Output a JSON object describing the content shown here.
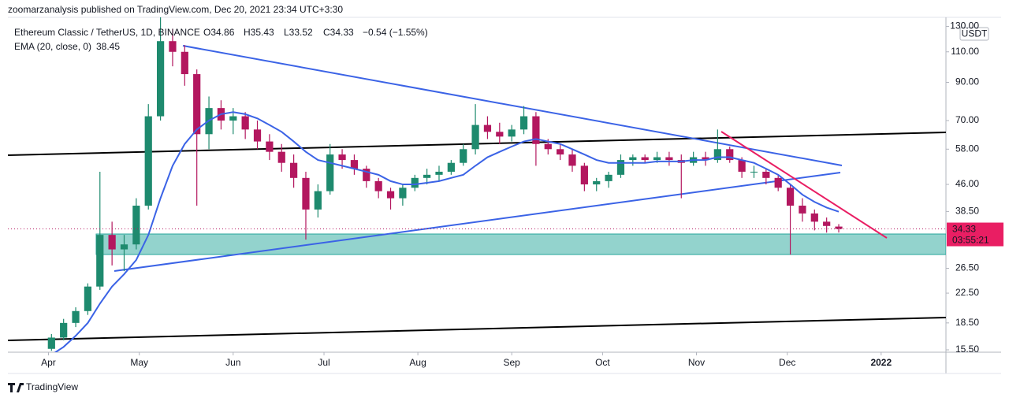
{
  "header": {
    "published": "zoomarzanalysis published on TradingView.com, Dec 20, 2021 23:34 UTC+3:30",
    "symbol": "Ethereum Classic / TetherUS, 1D, BINANCE",
    "ohlc": [
      "O34.86",
      "H35.43",
      "L33.52",
      "C34.33",
      "−0.54 (−1.55%)"
    ],
    "indicator": "EMA (20, close, 0)",
    "indicator_value": "38.45",
    "currency": "USDT",
    "countdown": "03:55:21",
    "brand": "TradingView"
  },
  "chart_data": {
    "type": "candlestick",
    "log_scale": true,
    "grid": false,
    "up_color": "#1e8a6e",
    "down_color": "#b3175f",
    "ema_color": "#3b63e6",
    "xlim": [
      -3.6,
      73.85
    ],
    "xticks": [
      {
        "value": -0.25,
        "label": "Apr"
      },
      {
        "value": 7.25,
        "label": "May"
      },
      {
        "value": 15,
        "label": "Jun"
      },
      {
        "value": 22.5,
        "label": "Jul"
      },
      {
        "value": 30.25,
        "label": "Aug"
      },
      {
        "value": 38,
        "label": "Sep"
      },
      {
        "value": 45.5,
        "label": "Oct"
      },
      {
        "value": 53.25,
        "label": "Nov"
      },
      {
        "value": 60.75,
        "label": "Dec"
      },
      {
        "value": 68.5,
        "label": "2022"
      }
    ],
    "ylim": [
      15.26,
      138
    ],
    "yticks": [
      {
        "value": 130,
        "label": "130.00"
      },
      {
        "value": 110,
        "label": "110.00"
      },
      {
        "value": 90,
        "label": "90.00"
      },
      {
        "value": 70,
        "label": "70.00"
      },
      {
        "value": 58,
        "label": "58.00"
      },
      {
        "value": 46,
        "label": "46.00"
      },
      {
        "value": 38.5,
        "label": "38.50"
      },
      {
        "value": 26.5,
        "label": "26.50"
      },
      {
        "value": 22.5,
        "label": "22.50"
      },
      {
        "value": 18.5,
        "label": "18.50"
      },
      {
        "value": 15.5,
        "label": "15.50"
      }
    ],
    "open": [
      15.6,
      16.8,
      18.5,
      20,
      23.5,
      33,
      30,
      31,
      40,
      72,
      118,
      110,
      95,
      64,
      76,
      70,
      72,
      66,
      61,
      57,
      53,
      48,
      39,
      44,
      56,
      54,
      51,
      47,
      44,
      42,
      45,
      48,
      49,
      50,
      53,
      58,
      68,
      65,
      63,
      66,
      72,
      60,
      58,
      56,
      52,
      46,
      47,
      49,
      54,
      55,
      54,
      55,
      54,
      53,
      55,
      54,
      58,
      54,
      50,
      50,
      48,
      45,
      40,
      38,
      36,
      34.86
    ],
    "high": [
      17.2,
      19,
      20.5,
      24,
      50,
      36,
      33,
      42,
      78,
      140,
      128,
      115,
      98,
      82,
      80,
      76,
      74,
      70,
      64,
      60,
      56,
      50,
      46,
      60,
      58,
      56,
      52,
      48,
      45,
      46,
      49,
      51,
      52,
      54,
      60,
      78,
      72,
      69,
      68,
      77,
      74,
      62,
      60,
      58,
      53,
      48,
      50,
      56,
      56,
      56,
      57,
      57,
      56,
      57,
      57,
      66,
      59,
      55,
      52,
      51,
      49,
      46,
      42,
      39,
      37,
      35.43
    ],
    "low": [
      15.4,
      16.5,
      18,
      19.5,
      23,
      27,
      26,
      30,
      39,
      70,
      100,
      88,
      40,
      58,
      66,
      64,
      62,
      58,
      54,
      50,
      45,
      32,
      37,
      43,
      51,
      49,
      45,
      42,
      39,
      40,
      44,
      46,
      47,
      49,
      52,
      56,
      62,
      60,
      61,
      64,
      52,
      56,
      54,
      50,
      44,
      44,
      45,
      48,
      52,
      53,
      53,
      52,
      42,
      52,
      52,
      53,
      53,
      48,
      48,
      46,
      44,
      29,
      36,
      34,
      33.5,
      33.52
    ],
    "close": [
      16.8,
      18.5,
      20,
      23.5,
      33,
      30,
      31,
      40,
      72,
      118,
      110,
      95,
      64,
      76,
      70,
      72,
      66,
      61,
      57,
      53,
      48,
      39,
      44,
      56,
      54,
      51,
      47,
      44,
      42,
      45,
      48,
      49,
      50,
      53,
      58,
      68,
      65,
      63,
      66,
      72,
      60,
      58,
      56,
      52,
      46,
      47,
      49,
      54,
      55,
      54,
      55,
      54,
      53,
      55,
      54,
      58,
      54,
      50,
      50,
      48,
      45,
      40,
      38,
      36,
      35,
      34.33
    ],
    "ema": [
      15,
      15.8,
      17,
      18.5,
      21,
      23.5,
      25.5,
      28,
      33,
      42,
      52,
      60,
      66,
      70,
      73,
      74,
      73,
      71,
      68,
      65,
      61,
      57,
      54,
      53,
      52,
      51,
      50,
      49,
      47,
      46,
      46,
      46.5,
      47,
      48,
      49,
      52,
      55,
      57,
      59,
      61,
      62,
      61,
      60,
      58,
      56,
      54,
      53,
      53,
      53,
      53,
      53.5,
      53.5,
      53.5,
      54,
      54,
      55,
      55,
      54,
      53,
      51,
      49,
      46,
      43,
      41,
      39.5,
      38.45
    ]
  }
}
